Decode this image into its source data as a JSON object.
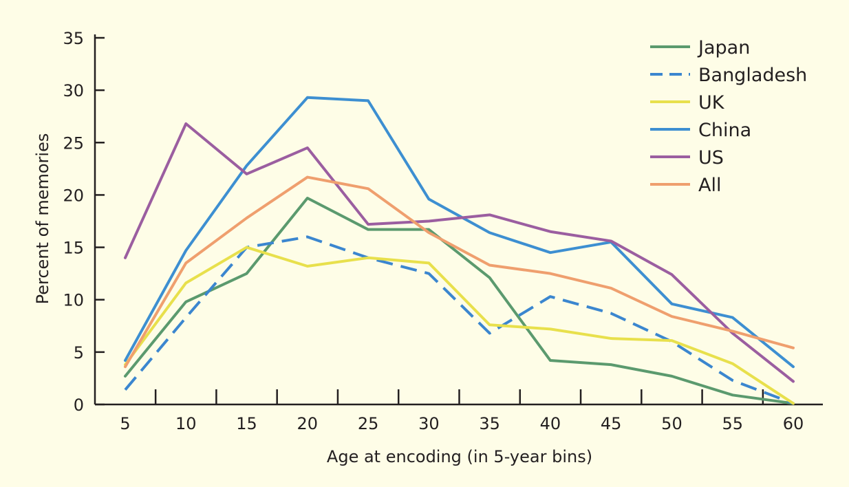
{
  "chart_data": {
    "type": "line",
    "xlabel": "Age at encoding (in 5-year bins)",
    "ylabel": "Percent of memories",
    "x": [
      5,
      10,
      15,
      20,
      25,
      30,
      35,
      40,
      45,
      50,
      55,
      60
    ],
    "x_tick_labels": [
      "5",
      "10",
      "15",
      "20",
      "25",
      "30",
      "35",
      "40",
      "45",
      "50",
      "55",
      "60"
    ],
    "y_ticks": [
      0,
      5,
      10,
      15,
      20,
      25,
      30,
      35
    ],
    "y_tick_labels": [
      "0",
      "5",
      "10",
      "15",
      "20",
      "25",
      "30",
      "35"
    ],
    "ylim": [
      0,
      35
    ],
    "grid": false,
    "legend_position": "top-right",
    "background_color": "#fefde7",
    "series": [
      {
        "name": "Japan",
        "color": "#5b9a6e",
        "dashed": false,
        "values": [
          2.7,
          9.8,
          12.5,
          19.7,
          16.7,
          16.7,
          12.1,
          4.2,
          3.8,
          2.7,
          0.9,
          0.1
        ]
      },
      {
        "name": "Bangladesh",
        "color": "#3b86cf",
        "dashed": true,
        "values": [
          1.4,
          8.3,
          15.0,
          16.0,
          14.0,
          12.5,
          6.8,
          10.3,
          8.7,
          6.0,
          2.3,
          0.1
        ]
      },
      {
        "name": "UK",
        "color": "#e8e04c",
        "dashed": false,
        "values": [
          3.8,
          11.6,
          15.0,
          13.2,
          14.0,
          13.5,
          7.6,
          7.2,
          6.3,
          6.1,
          3.9,
          0.1
        ]
      },
      {
        "name": "China",
        "color": "#3d8fd1",
        "dashed": false,
        "values": [
          4.2,
          14.7,
          22.8,
          29.3,
          29.0,
          19.6,
          16.4,
          14.5,
          15.5,
          9.6,
          8.3,
          3.6
        ]
      },
      {
        "name": "US",
        "color": "#9b5ea0",
        "dashed": false,
        "values": [
          14.0,
          26.8,
          22.0,
          24.5,
          17.2,
          17.5,
          18.1,
          16.5,
          15.6,
          12.4,
          6.8,
          2.2
        ]
      },
      {
        "name": "All",
        "color": "#ef9f6e",
        "dashed": false,
        "values": [
          3.6,
          13.5,
          17.8,
          21.7,
          20.6,
          16.4,
          13.3,
          12.5,
          11.1,
          8.4,
          7.0,
          5.4
        ]
      }
    ]
  }
}
